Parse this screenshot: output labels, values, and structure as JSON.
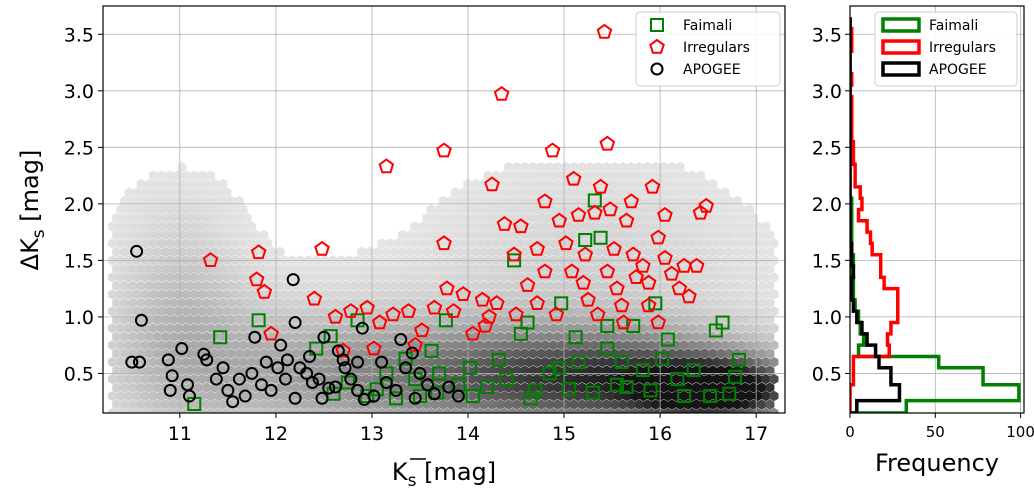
{
  "chart_data": [
    {
      "type": "scatter",
      "panel": "main",
      "xlabel": "K̄s [mag]",
      "ylabel": "ΔKs [mag]",
      "xlim": [
        10.2,
        17.3
      ],
      "ylim": [
        0.15,
        3.75
      ],
      "xticks": [
        11,
        12,
        13,
        14,
        15,
        16,
        17
      ],
      "yticks": [
        0.5,
        1.0,
        1.5,
        2.0,
        2.5,
        3.0,
        3.5
      ],
      "xtick_labels": [
        "11",
        "12",
        "13",
        "14",
        "15",
        "16",
        "17"
      ],
      "ytick_labels": [
        "0.5",
        "1.0",
        "1.5",
        "2.0",
        "2.5",
        "3.0",
        "3.5"
      ],
      "grid": true,
      "legend_position": "top-right",
      "background": "grayscale hexbin density of all sources",
      "series": [
        {
          "name": "Faimali",
          "marker": "square",
          "color": "#008000",
          "points": [
            [
              11.15,
              0.23
            ],
            [
              11.42,
              0.82
            ],
            [
              11.82,
              0.97
            ],
            [
              12.42,
              0.72
            ],
            [
              12.57,
              0.83
            ],
            [
              12.85,
              0.97
            ],
            [
              13.35,
              0.63
            ],
            [
              13.62,
              0.7
            ],
            [
              13.77,
              0.97
            ],
            [
              13.68,
              0.33
            ],
            [
              14.02,
              0.55
            ],
            [
              14.32,
              0.62
            ],
            [
              14.55,
              0.85
            ],
            [
              14.48,
              1.5
            ],
            [
              14.62,
              0.95
            ],
            [
              14.85,
              0.5
            ],
            [
              14.97,
              1.12
            ],
            [
              15.12,
              0.82
            ],
            [
              15.22,
              1.68
            ],
            [
              15.32,
              2.03
            ],
            [
              15.38,
              1.7
            ],
            [
              15.45,
              0.72
            ],
            [
              15.55,
              0.4
            ],
            [
              15.72,
              0.92
            ],
            [
              15.82,
              0.53
            ],
            [
              15.95,
              1.12
            ],
            [
              16.02,
              0.63
            ],
            [
              16.08,
              0.8
            ],
            [
              16.18,
              0.45
            ],
            [
              16.35,
              0.53
            ],
            [
              16.52,
              0.3
            ],
            [
              16.58,
              0.88
            ],
            [
              16.65,
              0.95
            ],
            [
              16.78,
              0.47
            ],
            [
              16.82,
              0.62
            ],
            [
              16.72,
              0.32
            ],
            [
              15.45,
              0.92
            ],
            [
              15.65,
              0.38
            ],
            [
              13.15,
              0.5
            ],
            [
              13.45,
              0.45
            ],
            [
              12.6,
              0.32
            ],
            [
              12.95,
              0.3
            ],
            [
              13.25,
              0.28
            ],
            [
              13.9,
              0.4
            ],
            [
              14.2,
              0.38
            ],
            [
              14.7,
              0.35
            ],
            [
              15.05,
              0.36
            ],
            [
              15.3,
              0.33
            ],
            [
              15.9,
              0.35
            ],
            [
              16.25,
              0.3
            ],
            [
              13.5,
              0.3
            ],
            [
              14.05,
              0.3
            ],
            [
              14.4,
              0.45
            ],
            [
              14.95,
              0.55
            ],
            [
              15.15,
              0.6
            ],
            [
              12.75,
              0.42
            ],
            [
              13.05,
              0.36
            ],
            [
              13.7,
              0.5
            ],
            [
              14.65,
              0.28
            ],
            [
              15.6,
              0.6
            ]
          ]
        },
        {
          "name": "Irregulars",
          "marker": "pentagon",
          "color": "#ff0000",
          "points": [
            [
              11.32,
              1.5
            ],
            [
              11.82,
              1.57
            ],
            [
              11.8,
              1.33
            ],
            [
              11.88,
              1.22
            ],
            [
              11.95,
              0.85
            ],
            [
              12.48,
              1.6
            ],
            [
              12.4,
              1.16
            ],
            [
              12.62,
              1.0
            ],
            [
              12.78,
              1.05
            ],
            [
              12.95,
              1.08
            ],
            [
              13.15,
              2.33
            ],
            [
              13.08,
              0.95
            ],
            [
              13.22,
              1.02
            ],
            [
              13.38,
              1.05
            ],
            [
              13.52,
              0.88
            ],
            [
              13.65,
              1.08
            ],
            [
              13.75,
              2.47
            ],
            [
              13.75,
              1.65
            ],
            [
              13.78,
              1.25
            ],
            [
              13.85,
              1.05
            ],
            [
              13.95,
              1.2
            ],
            [
              14.05,
              0.85
            ],
            [
              14.15,
              1.15
            ],
            [
              14.25,
              2.17
            ],
            [
              14.22,
              1.0
            ],
            [
              14.35,
              2.97
            ],
            [
              14.38,
              1.82
            ],
            [
              14.48,
              1.55
            ],
            [
              14.55,
              1.8
            ],
            [
              14.62,
              1.28
            ],
            [
              14.72,
              1.6
            ],
            [
              14.8,
              1.4
            ],
            [
              14.88,
              2.47
            ],
            [
              14.95,
              1.85
            ],
            [
              15.02,
              1.65
            ],
            [
              15.08,
              1.4
            ],
            [
              15.15,
              1.9
            ],
            [
              15.2,
              1.3
            ],
            [
              15.25,
              1.15
            ],
            [
              15.32,
              1.92
            ],
            [
              15.38,
              2.15
            ],
            [
              15.42,
              3.52
            ],
            [
              15.45,
              2.53
            ],
            [
              15.48,
              1.95
            ],
            [
              15.52,
              1.6
            ],
            [
              15.55,
              1.25
            ],
            [
              15.6,
              1.1
            ],
            [
              15.65,
              1.85
            ],
            [
              15.72,
              1.55
            ],
            [
              15.75,
              1.35
            ],
            [
              15.82,
              1.45
            ],
            [
              15.88,
              1.1
            ],
            [
              15.92,
              2.15
            ],
            [
              15.98,
              1.7
            ],
            [
              16.05,
              1.52
            ],
            [
              16.12,
              1.38
            ],
            [
              16.2,
              1.25
            ],
            [
              16.3,
              1.18
            ],
            [
              16.42,
              1.92
            ],
            [
              16.48,
              1.98
            ],
            [
              16.38,
              1.45
            ],
            [
              15.98,
              0.95
            ],
            [
              15.62,
              0.95
            ],
            [
              15.35,
              1.02
            ],
            [
              14.92,
              1.02
            ],
            [
              14.5,
              1.02
            ],
            [
              14.18,
              0.92
            ],
            [
              13.45,
              0.75
            ],
            [
              13.02,
              0.72
            ],
            [
              12.7,
              0.7
            ],
            [
              15.1,
              2.22
            ],
            [
              14.8,
              2.02
            ],
            [
              15.7,
              2.02
            ],
            [
              16.05,
              1.9
            ],
            [
              15.22,
              1.55
            ],
            [
              15.88,
              1.3
            ],
            [
              14.3,
              1.12
            ],
            [
              14.72,
              1.12
            ],
            [
              15.45,
              1.4
            ],
            [
              16.25,
              1.45
            ]
          ]
        },
        {
          "name": "APOGEE",
          "marker": "circle",
          "color": "#000000",
          "points": [
            [
              10.5,
              0.6
            ],
            [
              10.55,
              1.58
            ],
            [
              10.6,
              0.97
            ],
            [
              10.58,
              0.6
            ],
            [
              10.88,
              0.62
            ],
            [
              10.92,
              0.48
            ],
            [
              11.02,
              0.72
            ],
            [
              11.08,
              0.4
            ],
            [
              11.25,
              0.67
            ],
            [
              11.28,
              0.62
            ],
            [
              11.38,
              0.45
            ],
            [
              11.45,
              0.55
            ],
            [
              11.5,
              0.35
            ],
            [
              11.62,
              0.45
            ],
            [
              11.68,
              0.3
            ],
            [
              11.78,
              0.82
            ],
            [
              11.85,
              0.4
            ],
            [
              11.95,
              0.35
            ],
            [
              12.05,
              0.75
            ],
            [
              12.12,
              0.62
            ],
            [
              12.18,
              1.33
            ],
            [
              12.25,
              0.55
            ],
            [
              12.32,
              0.5
            ],
            [
              12.38,
              0.42
            ],
            [
              12.45,
              0.45
            ],
            [
              12.5,
              0.82
            ],
            [
              12.55,
              0.37
            ],
            [
              12.62,
              0.38
            ],
            [
              12.72,
              0.55
            ],
            [
              12.78,
              0.45
            ],
            [
              12.85,
              0.35
            ],
            [
              12.92,
              0.27
            ],
            [
              13.02,
              0.3
            ],
            [
              13.15,
              0.42
            ],
            [
              13.25,
              0.35
            ],
            [
              13.35,
              0.55
            ],
            [
              13.42,
              0.68
            ],
            [
              13.5,
              0.5
            ],
            [
              13.58,
              0.4
            ],
            [
              13.65,
              0.32
            ],
            [
              13.8,
              0.38
            ],
            [
              13.9,
              0.3
            ],
            [
              12.02,
              0.55
            ],
            [
              12.2,
              0.95
            ],
            [
              11.9,
              0.6
            ],
            [
              10.9,
              0.35
            ],
            [
              11.1,
              0.3
            ],
            [
              12.7,
              0.62
            ],
            [
              12.9,
              0.9
            ],
            [
              13.1,
              0.6
            ],
            [
              13.45,
              0.28
            ],
            [
              12.48,
              0.28
            ],
            [
              12.2,
              0.28
            ],
            [
              11.75,
              0.5
            ],
            [
              12.65,
              0.7
            ],
            [
              12.35,
              0.65
            ],
            [
              12.1,
              0.45
            ],
            [
              11.55,
              0.25
            ],
            [
              12.85,
              0.6
            ],
            [
              13.3,
              0.8
            ]
          ]
        }
      ]
    },
    {
      "type": "histogram",
      "panel": "side",
      "orientation": "horizontal",
      "xlabel": "Frequency",
      "xlim": [
        0,
        102
      ],
      "xticks": [
        0,
        50,
        100
      ],
      "xtick_labels": [
        "0",
        "50",
        "100"
      ],
      "ylim": [
        0.15,
        3.75
      ],
      "yticks": [
        0.5,
        1.0,
        1.5,
        2.0,
        2.5,
        3.0,
        3.5
      ],
      "ytick_labels": [
        "0.5",
        "1.0",
        "1.5",
        "2.0",
        "2.5",
        "3.0",
        "3.5"
      ],
      "bin_edges": [
        0.15,
        0.26,
        0.4,
        0.55,
        0.65,
        0.75,
        0.85,
        0.95,
        1.05,
        1.15,
        1.25,
        1.35,
        1.45,
        1.55,
        1.65,
        1.75,
        1.85,
        1.95,
        2.05,
        2.15,
        2.25,
        2.35,
        2.45,
        2.55,
        2.65,
        2.75,
        2.85,
        2.95,
        3.05,
        3.15,
        3.25,
        3.35,
        3.45,
        3.55,
        3.65
      ],
      "legend_position": "top-right",
      "series": [
        {
          "name": "Faimali",
          "color": "#008000",
          "counts": [
            33,
            99,
            78,
            52,
            5,
            8,
            6,
            5,
            3,
            2,
            2,
            1,
            2,
            1,
            1,
            1,
            1,
            1,
            0,
            0,
            0,
            0,
            0,
            0,
            0,
            0,
            0,
            0,
            0,
            0,
            0,
            0,
            0,
            0
          ]
        },
        {
          "name": "Irregulars",
          "color": "#ff0000",
          "counts": [
            0,
            0,
            2,
            2,
            23,
            22,
            24,
            28,
            28,
            28,
            20,
            18,
            18,
            13,
            12,
            10,
            5,
            7,
            6,
            3,
            3,
            2,
            2,
            1,
            1,
            1,
            1,
            0,
            1,
            0,
            0,
            1,
            1,
            0
          ]
        },
        {
          "name": "APOGEE",
          "color": "#000000",
          "counts": [
            4,
            29,
            24,
            17,
            15,
            10,
            7,
            4,
            2,
            1,
            1,
            2,
            1,
            1,
            0,
            0,
            0,
            0,
            0,
            0,
            0,
            0,
            0,
            0,
            0,
            0,
            0,
            0,
            0,
            0,
            0,
            0,
            0,
            0
          ]
        }
      ]
    }
  ]
}
